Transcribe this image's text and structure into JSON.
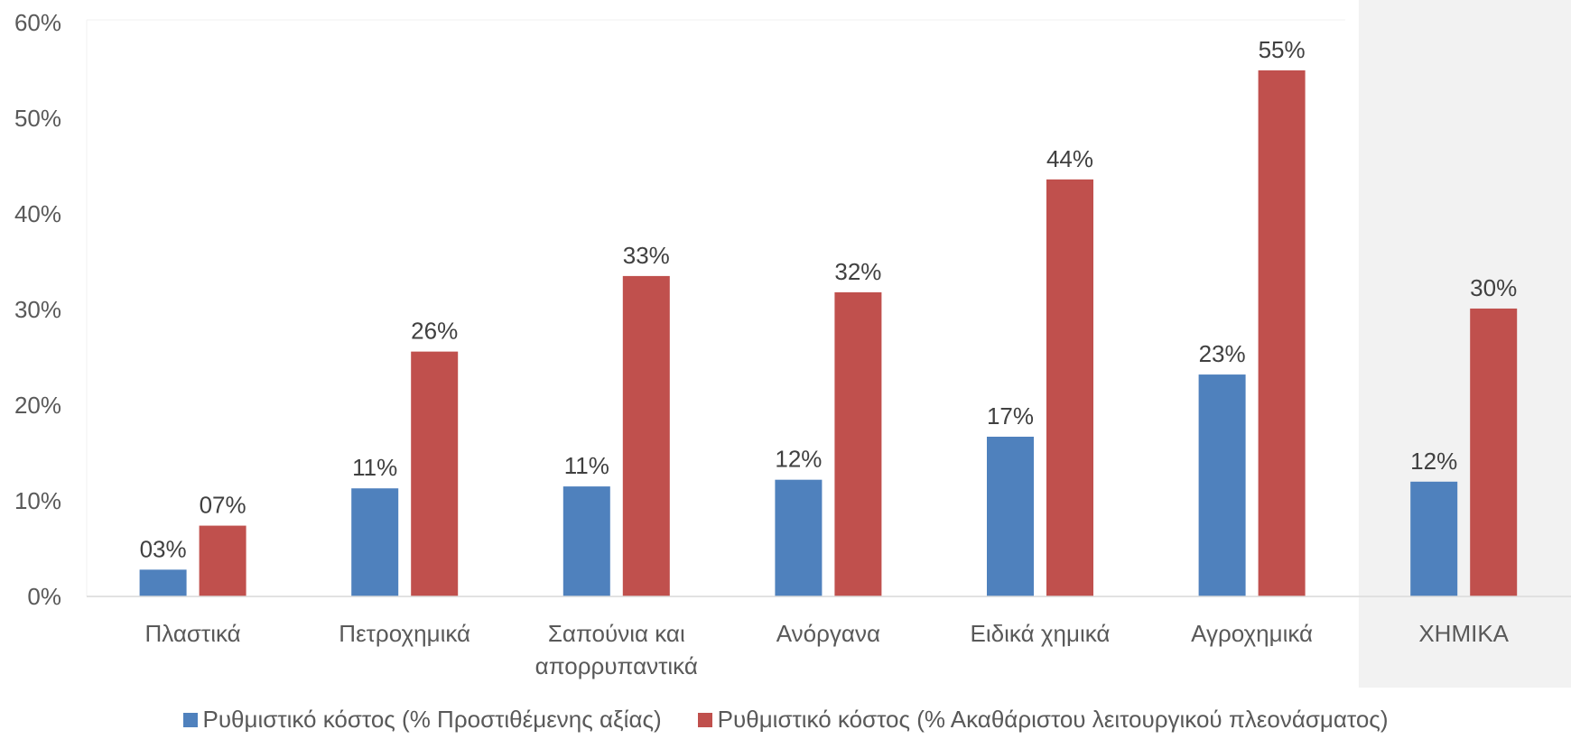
{
  "chart_data": {
    "type": "bar",
    "categories": [
      "Πλαστικά",
      "Πετροχημικά",
      "Σαπούνια και απορρυπαντικά",
      "Ανόργανα",
      "Ειδικά χημικά",
      "Αγροχημικά",
      "ΧΗΜΙΚΑ"
    ],
    "category_lines": [
      [
        "Πλαστικά"
      ],
      [
        "Πετροχημικά"
      ],
      [
        "Σαπούνια και",
        "απορρυπαντικά"
      ],
      [
        "Ανόργανα"
      ],
      [
        "Ειδικά χημικά"
      ],
      [
        "Αγροχημικά"
      ],
      [
        "ΧΗΜΙΚΑ"
      ]
    ],
    "series": [
      {
        "name": "Ρυθμιστικό κόστος (% Προστιθέμενης αξίας)",
        "color": "#4f81bd",
        "values": [
          2.8,
          11.3,
          11.5,
          12.2,
          16.7,
          23.2,
          12.0
        ],
        "labels": [
          "03%",
          "11%",
          "11%",
          "12%",
          "17%",
          "23%",
          "12%"
        ]
      },
      {
        "name": "Ρυθμιστικό κόστος (% Ακαθάριστου λειτουργικού πλεονάσματος)",
        "color": "#c0504d",
        "values": [
          7.4,
          25.6,
          33.5,
          31.8,
          43.6,
          55.0,
          30.1
        ],
        "labels": [
          "07%",
          "26%",
          "33%",
          "32%",
          "44%",
          "55%",
          "30%"
        ]
      }
    ],
    "ylim": [
      0,
      60
    ],
    "yticks": [
      "0%",
      "10%",
      "20%",
      "30%",
      "40%",
      "50%",
      "60%"
    ],
    "highlight_category": "ΧΗΜΙΚΑ",
    "highlight_color": "#f2f2f2",
    "legend_position": "bottom",
    "grid": false,
    "title": "",
    "xlabel": "",
    "ylabel": ""
  }
}
